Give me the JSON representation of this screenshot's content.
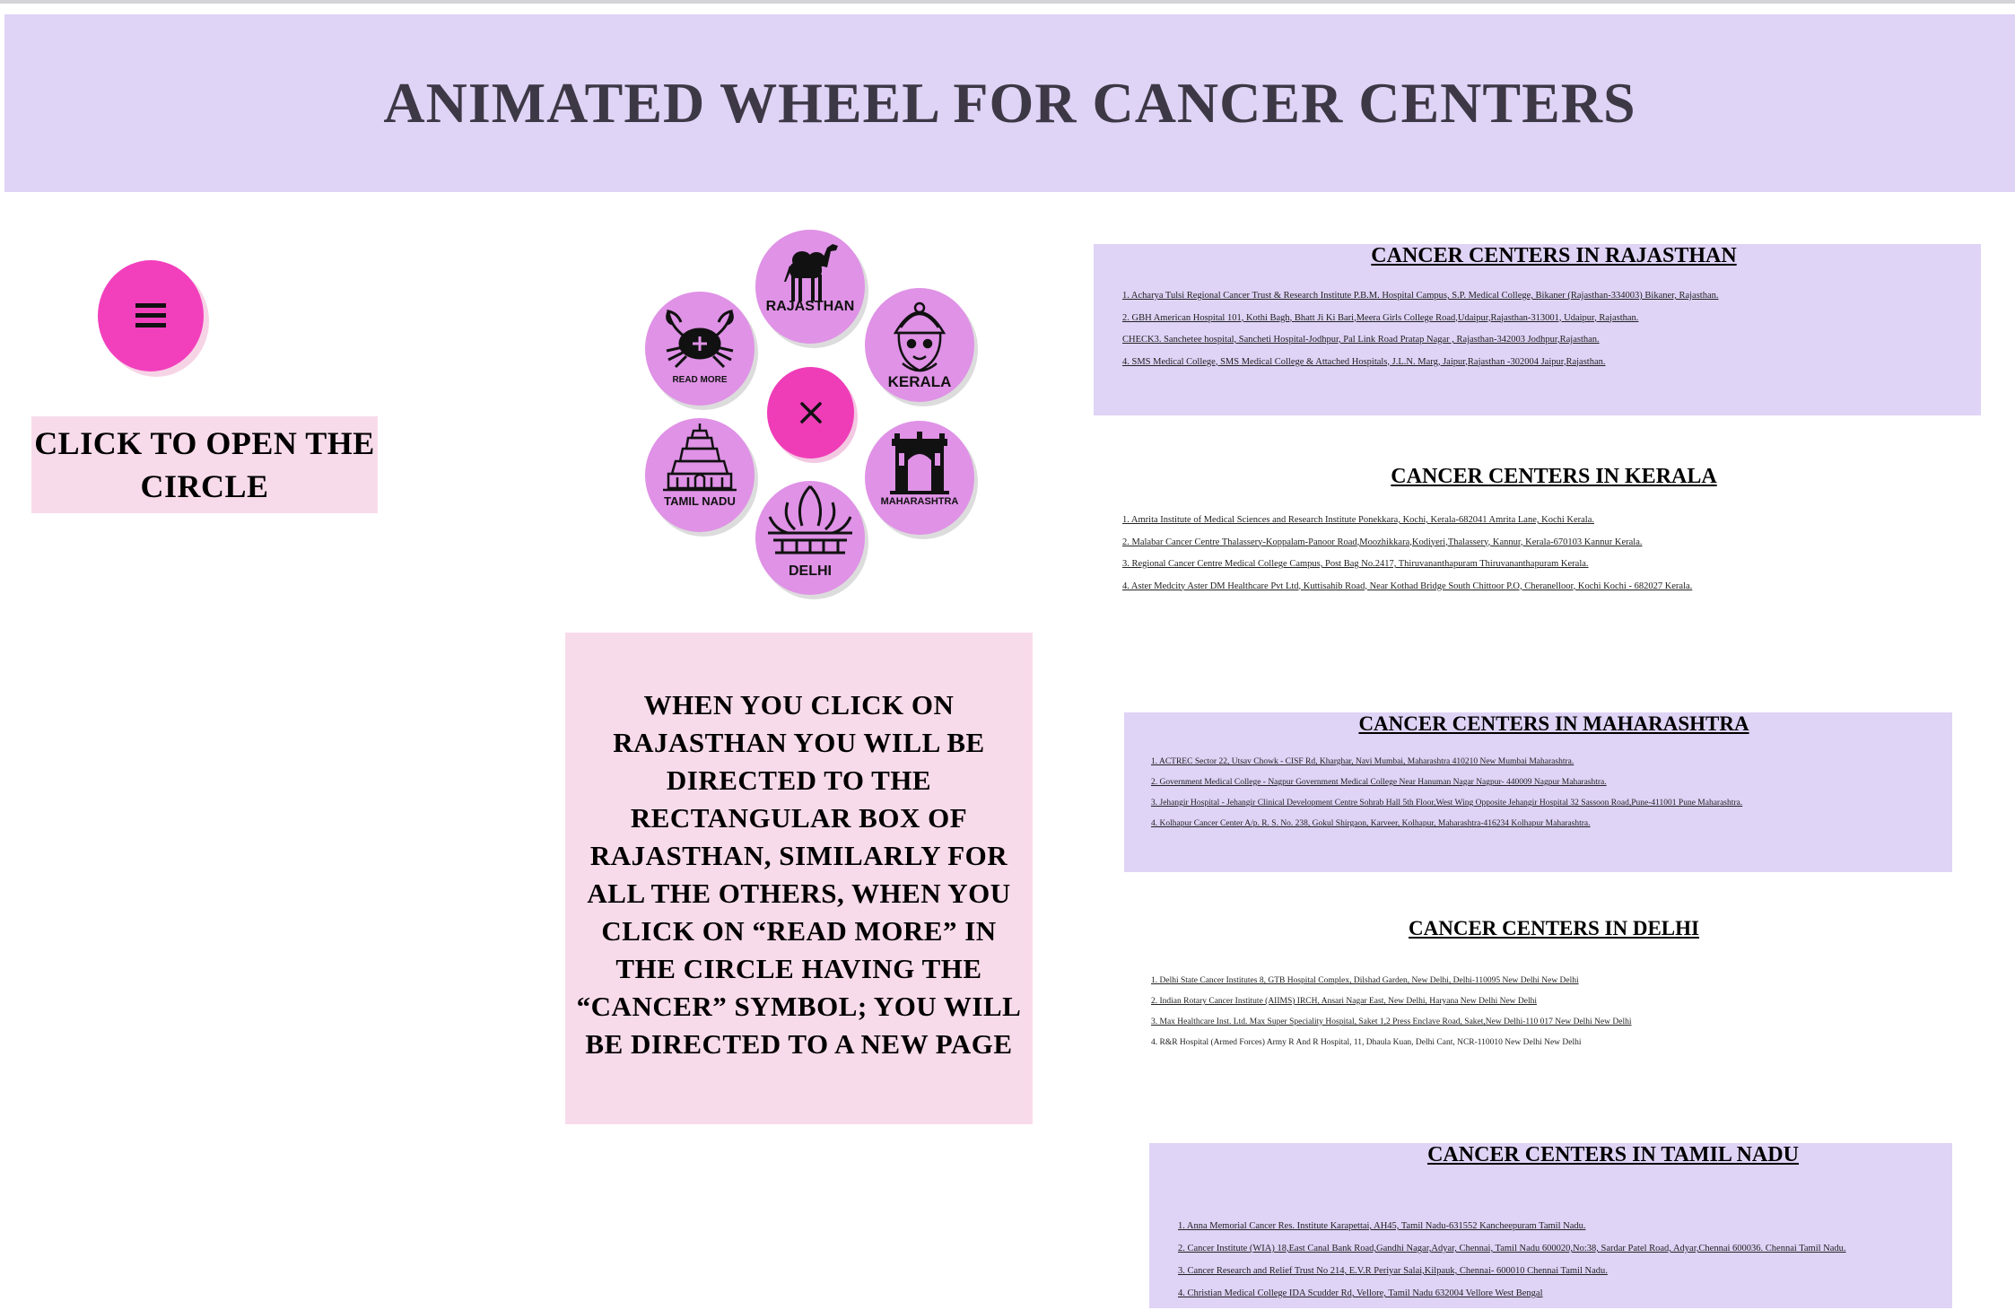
{
  "header": {
    "title": "ANIMATED WHEEL FOR CANCER CENTERS"
  },
  "menu": {
    "button_icon": "hamburger-menu-icon",
    "label": "CLICK TO OPEN THE CIRCLE"
  },
  "wheel": {
    "center_icon": "close-icon",
    "items": [
      {
        "label": "RAJASTHAN",
        "icon": "camel-icon"
      },
      {
        "label": "KERALA",
        "icon": "kathakali-face-icon"
      },
      {
        "label": "MAHARASHTRA",
        "icon": "gateway-of-india-icon"
      },
      {
        "label": "DELHI",
        "icon": "lotus-temple-icon"
      },
      {
        "label": "TAMIL NADU",
        "icon": "temple-gopuram-icon"
      },
      {
        "label": "READ MORE",
        "icon": "cancer-crab-icon"
      }
    ]
  },
  "instructions": {
    "text": "WHEN YOU CLICK ON RAJASTHAN YOU WILL BE DIRECTED TO THE RECTANGULAR BOX OF RAJASTHAN, SIMILARLY FOR ALL THE OTHERS, WHEN YOU CLICK ON “READ MORE” IN THE CIRCLE HAVING THE “CANCER” SYMBOL; YOU WILL BE DIRECTED TO A NEW PAGE"
  },
  "sections": {
    "rajasthan": {
      "title": "CANCER CENTERS IN RAJASTHAN",
      "items": [
        "1. Acharya Tulsi Regional Cancer Trust & Research Institute P.B.M. Hospital Campus, S.P. Medical College, Bikaner (Rajasthan-334003) Bikaner, Rajasthan.",
        "2. GBH American Hospital 101, Kothi Bagh, Bhatt Ji Ki Bari,Meera Girls College Road,Udaipur,Rajasthan-313001, Udaipur, Rajasthan.",
        "CHECK3. Sanchetee hospital, Sancheti Hospital-Jodhpur, Pal Link Road Pratap Nagar , Rajasthan-342003 Jodhpur,Rajasthan.",
        "4. SMS Medical College, SMS Medical College & Attached Hospitals, J.L.N. Marg, Jaipur,Rajasthan -302004 Jaipur,Rajasthan."
      ]
    },
    "kerala": {
      "title": "CANCER CENTERS IN KERALA",
      "items": [
        "1. Amrita Institute of Medical Sciences and Research Institute Ponekkara, Kochi, Kerala-682041 Amrita Lane, Kochi Kerala.",
        "2. Malabar Cancer Centre Thalassery-Koppalam-Panoor Road,Moozhikkara,Kodiyeri,Thalassery, Kannur, Kerala-670103 Kannur Kerala.",
        "3. Regional Cancer Centre Medical College Campus, Post Bag No.2417, Thiruvananthapuram Thiruvananthapuram Kerala.",
        "4. Aster Medcity Aster DM Healthcare Pvt Ltd, Kuttisahib Road, Near Kothad Bridge South Chittoor P.O, Cheranelloor, Kochi Kochi - 682027 Kerala."
      ]
    },
    "maharashtra": {
      "title": "CANCER CENTERS IN MAHARASHTRA",
      "items": [
        "1. ACTREC Sector 22, Utsav Chowk - CISF Rd, Kharghar, Navi Mumbai, Maharashtra 410210 New Mumbai Maharashtra.",
        "2. Government Medical College - Nagpur Government Medical College Near Hanuman Nagar Nagpur- 440009 Nagpur Maharashtra.",
        "3. Jehangir Hospital - Jehangir Clinical Development Centre Sohrab Hall 5th Floor,West Wing Opposite Jehangir Hospital 32 Sassoon Road,Pune-411001 Pune Maharashtra.",
        "4. Kolhapur Cancer Center A/p. R. S. No. 238, Gokul Shirgaon, Karveer, Kolhapur, Maharashtra-416234 Kolhapur Maharashtra."
      ]
    },
    "delhi": {
      "title": "CANCER CENTERS IN DELHI",
      "items": [
        "1. Delhi State Cancer Institutes 8, GTB Hospital Complex, Dilshad Garden, New Delhi, Delhi-110095 New Delhi New Delhi",
        "2. Indian Rotary Cancer Institute (AIIMS) IRCH, Ansari Nagar East, New Delhi, Haryana New Delhi New Delhi",
        "3. Max Healthcare Inst. Ltd. Max Super Speciality Hospital, Saket 1,2 Press Enclave Road, Saket,New Delhi-110 017 New Delhi New Delhi",
        "4. R&R Hospital (Armed Forces) Army R And R Hospital, 11, Dhaula Kuan, Delhi Cant, NCR-110010 New Delhi New Delhi"
      ]
    },
    "tamil_nadu": {
      "title": "CANCER CENTERS IN TAMIL NADU",
      "items": [
        "1. Anna Memorial Cancer Res. Institute Karapettai, AH45, Tamil Nadu-631552 Kancheepuram Tamil Nadu.",
        "2. Cancer Institute (WIA) 18,East Canal Bank Road,Gandhi Nagar,Adyar, Chennai, Tamil Nadu 600020,No:38, Sardar Patel Road, Adyar,Chennai 600036. Chennai Tamil Nadu.",
        "3. Cancer Research and Relief Trust No 214, E.V.R Periyar Salai,Kilpauk, Chennai- 600010 Chennai Tamil Nadu.",
        "4. Christian Medical College IDA Scudder Rd, Vellore, Tamil Nadu 632004 Vellore West Bengal"
      ]
    }
  },
  "colors": {
    "header_bg": "#dfd3f6",
    "accent_pink": "#f240bd",
    "bubble": "#df92e6",
    "label_bg": "#f8dbea",
    "title_text": "#3d3845"
  }
}
